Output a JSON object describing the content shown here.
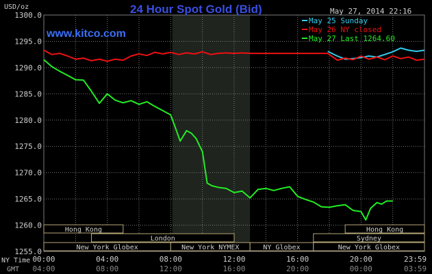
{
  "header": {
    "title": "24 Hour Spot Gold (Bid)",
    "site": "www.kitco.com",
    "unit": "USD/oz",
    "timestamp": "May 27, 2014 22:16"
  },
  "colors": {
    "background": "#000000",
    "grid": "#7a7a7a",
    "text": "#d0d0d0",
    "title": "#3a4fe0",
    "site": "#3a6ff5",
    "nymex_band": "#1f241f",
    "session_border": "#b8a878",
    "sunday": "#33ccee",
    "ny_closed": "#ee1111",
    "last": "#22ee22"
  },
  "legend": [
    {
      "label": "May 25 Sunday",
      "color": "#33ccee"
    },
    {
      "label": "May 26 NY closed",
      "color": "#ee1111"
    },
    {
      "label": "May 27 Last 1264.60",
      "color": "#22ee22"
    }
  ],
  "time_axis": {
    "row1_label": "NY Time",
    "row2_label": "GMT",
    "ny_ticks": [
      "00:00",
      "04:00",
      "08:00",
      "12:00",
      "16:00",
      "20:00",
      "23:59"
    ],
    "gmt_ticks": [
      "04:00",
      "08:00",
      "12:00",
      "16:00",
      "20:00",
      "00:00",
      "03:59"
    ]
  },
  "sessions": [
    {
      "label": "Hong Kong",
      "row": 0,
      "start": 0.0,
      "end": 5.0
    },
    {
      "label": "Hong Kong",
      "row": 0,
      "start": 19.0,
      "end": 24.0
    },
    {
      "label": "London",
      "row": 1,
      "start": 3.0,
      "end": 12.0
    },
    {
      "label": "Sydney",
      "row": 1,
      "start": 17.0,
      "end": 24.0
    },
    {
      "label": "New York Globex",
      "row": 2,
      "start": 0.0,
      "end": 8.0
    },
    {
      "label": "New York NYMEX",
      "row": 2,
      "start": 8.0,
      "end": 13.0
    },
    {
      "label": "NY Globex",
      "row": 2,
      "start": 13.0,
      "end": 17.0
    },
    {
      "label": "New York Globex",
      "row": 2,
      "start": 17.0,
      "end": 24.0
    }
  ],
  "chart_data": {
    "type": "line",
    "title": "24 Hour Spot Gold (Bid)",
    "ylabel": "USD/oz",
    "xlabel": "NY Time",
    "xlim": [
      0,
      24
    ],
    "ylim": [
      1255,
      1300
    ],
    "yticks": [
      "1255.0",
      "1260.0",
      "1265.0",
      "1270.0",
      "1275.0",
      "1280.0",
      "1285.0",
      "1290.0",
      "1295.0",
      "1300.0"
    ],
    "highlight_band": {
      "label": "New York NYMEX",
      "x": [
        8.1,
        13.0
      ]
    },
    "grid": true,
    "legend_position": "top-right",
    "series": [
      {
        "name": "May 25 Sunday",
        "color": "#33ccee",
        "x": [
          17.9,
          18.5,
          19.0,
          19.5,
          20.0,
          20.5,
          21.0,
          21.5,
          22.0,
          22.5,
          23.0,
          23.5,
          24.0
        ],
        "y": [
          1293.1,
          1292.2,
          1291.6,
          1291.7,
          1291.9,
          1292.2,
          1292.0,
          1292.5,
          1293.0,
          1293.7,
          1293.3,
          1293.1,
          1293.3
        ]
      },
      {
        "name": "May 26 NY closed",
        "color": "#ee1111",
        "x": [
          0.0,
          0.5,
          1.0,
          1.5,
          2.0,
          2.5,
          3.0,
          3.5,
          4.0,
          4.5,
          5.0,
          5.5,
          6.0,
          6.5,
          7.0,
          7.5,
          8.0,
          8.5,
          9.0,
          9.5,
          10.0,
          10.5,
          11.0,
          11.5,
          12.0,
          12.5,
          13.0,
          14.0,
          15.0,
          16.0,
          17.0,
          17.9,
          18.5,
          19.0,
          19.5,
          20.0,
          20.5,
          21.0,
          21.5,
          22.0,
          22.5,
          23.0,
          23.5,
          24.0
        ],
        "y": [
          1293.3,
          1292.5,
          1292.7,
          1292.2,
          1291.6,
          1291.8,
          1291.3,
          1291.6,
          1291.2,
          1291.6,
          1291.4,
          1292.2,
          1292.6,
          1292.3,
          1292.9,
          1292.6,
          1292.9,
          1292.5,
          1292.8,
          1292.6,
          1293.0,
          1292.5,
          1292.7,
          1292.8,
          1292.7,
          1292.8,
          1292.7,
          1292.7,
          1292.7,
          1292.7,
          1292.7,
          1292.7,
          1291.4,
          1291.8,
          1291.5,
          1292.2,
          1291.6,
          1292.0,
          1291.5,
          1292.2,
          1291.7,
          1292.0,
          1291.4,
          1291.6
        ]
      },
      {
        "name": "May 27 Last 1264.60",
        "color": "#22ee22",
        "x": [
          0.0,
          0.5,
          1.0,
          1.5,
          2.0,
          2.5,
          3.0,
          3.5,
          4.0,
          4.5,
          5.0,
          5.5,
          6.0,
          6.5,
          7.0,
          7.5,
          8.0,
          8.3,
          8.6,
          9.0,
          9.3,
          9.6,
          10.0,
          10.3,
          10.6,
          11.0,
          11.5,
          12.0,
          12.5,
          13.0,
          13.5,
          14.0,
          14.5,
          15.0,
          15.5,
          16.0,
          16.5,
          17.0,
          17.5,
          18.0,
          18.5,
          19.0,
          19.5,
          20.0,
          20.3,
          20.6,
          21.0,
          21.3,
          21.6,
          22.0
        ],
        "y": [
          1291.5,
          1290.2,
          1289.3,
          1288.5,
          1287.7,
          1287.6,
          1285.5,
          1283.2,
          1285.0,
          1283.8,
          1283.3,
          1283.7,
          1283.0,
          1283.5,
          1282.6,
          1281.8,
          1281.0,
          1278.5,
          1276.0,
          1278.0,
          1277.5,
          1276.5,
          1274.0,
          1268.0,
          1267.5,
          1267.2,
          1267.0,
          1266.2,
          1266.5,
          1265.2,
          1266.8,
          1267.0,
          1266.6,
          1267.0,
          1267.3,
          1265.5,
          1264.9,
          1264.4,
          1263.5,
          1263.4,
          1263.7,
          1263.9,
          1262.8,
          1262.6,
          1261.0,
          1263.2,
          1264.3,
          1264.0,
          1264.6,
          1264.6
        ]
      }
    ]
  }
}
